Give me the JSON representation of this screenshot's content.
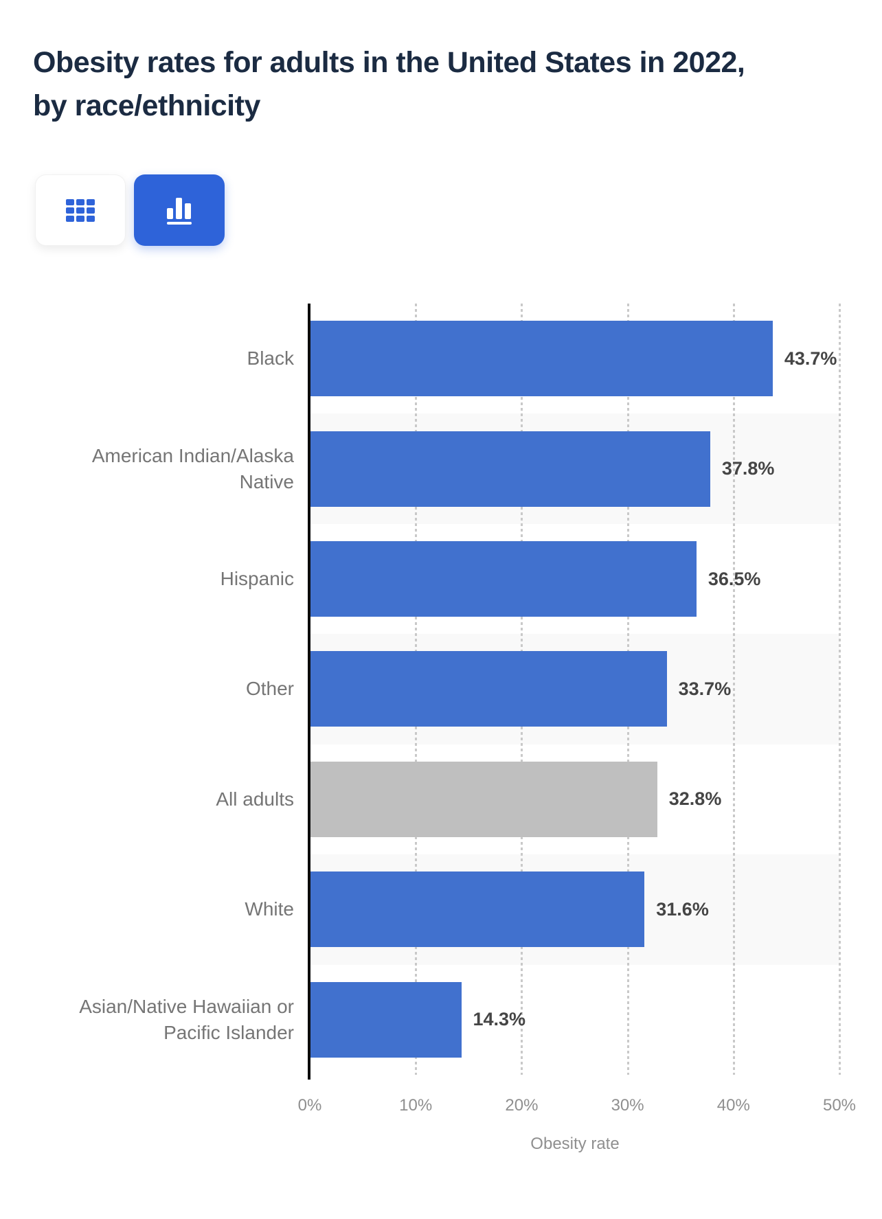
{
  "page": {
    "title": "Obesity rates for adults in the United States in 2022, by race/ethnicity"
  },
  "toolbar": {
    "buttons": [
      {
        "name": "table-view-button",
        "icon": "grid-icon",
        "active": false
      },
      {
        "name": "chart-view-button",
        "icon": "bar-chart-icon",
        "active": true
      }
    ]
  },
  "colors": {
    "accent_blue": "#2e63d9",
    "bar_blue": "#4171ce",
    "bar_gray": "#bfbfbf",
    "row_band": "#f9f9f9",
    "axis_line": "#0b0b0b",
    "gridline": "#c9c9c9",
    "tick_text": "#8f8f8f",
    "category_text": "#757575",
    "value_text": "#454545",
    "title_text": "#1b2b42"
  },
  "chart_data": {
    "type": "bar",
    "orientation": "horizontal",
    "title": "Obesity rates for adults in the United States in 2022, by race/ethnicity",
    "xlabel": "Obesity rate",
    "ylabel": "",
    "xlim": [
      0,
      50
    ],
    "x_tick_labels": [
      "0%",
      "10%",
      "20%",
      "30%",
      "40%",
      "50%"
    ],
    "grid": "dotted-vertical",
    "legend": "none",
    "categories": [
      "Black",
      "American Indian/Alaska Native",
      "Hispanic",
      "Other",
      "All adults",
      "White",
      "Asian/Native Hawaiian or Pacific Islander"
    ],
    "values": [
      43.7,
      37.8,
      36.5,
      33.7,
      32.8,
      31.6,
      14.3
    ],
    "value_labels": [
      "43.7%",
      "37.8%",
      "36.5%",
      "33.7%",
      "32.8%",
      "31.6%",
      "14.3%"
    ],
    "bar_colors": [
      "#4171ce",
      "#4171ce",
      "#4171ce",
      "#4171ce",
      "#bfbfbf",
      "#4171ce",
      "#4171ce"
    ],
    "highlight_category": "All adults"
  }
}
